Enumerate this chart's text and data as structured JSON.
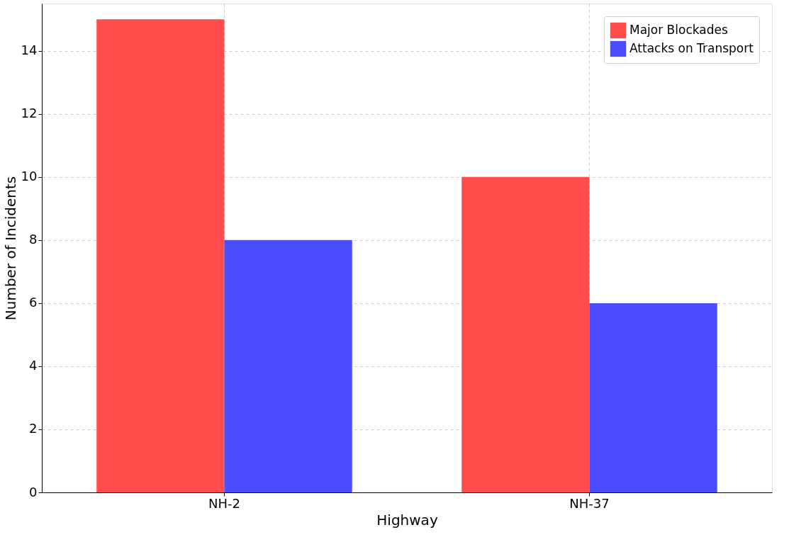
{
  "chart_data": {
    "type": "bar",
    "xlabel": "Highway",
    "ylabel": "Number of Incidents",
    "categories": [
      "NH-2",
      "NH-37"
    ],
    "series": [
      {
        "name": "Major Blockades",
        "color": "#ff4c4c",
        "values": [
          15,
          10
        ]
      },
      {
        "name": "Attacks on Transport",
        "color": "#4c4cff",
        "values": [
          8,
          6
        ]
      }
    ],
    "ylim": [
      0,
      15.5
    ],
    "yticks": [
      0,
      2,
      4,
      6,
      8,
      10,
      12,
      14
    ],
    "grid": true,
    "legend": "top right"
  }
}
